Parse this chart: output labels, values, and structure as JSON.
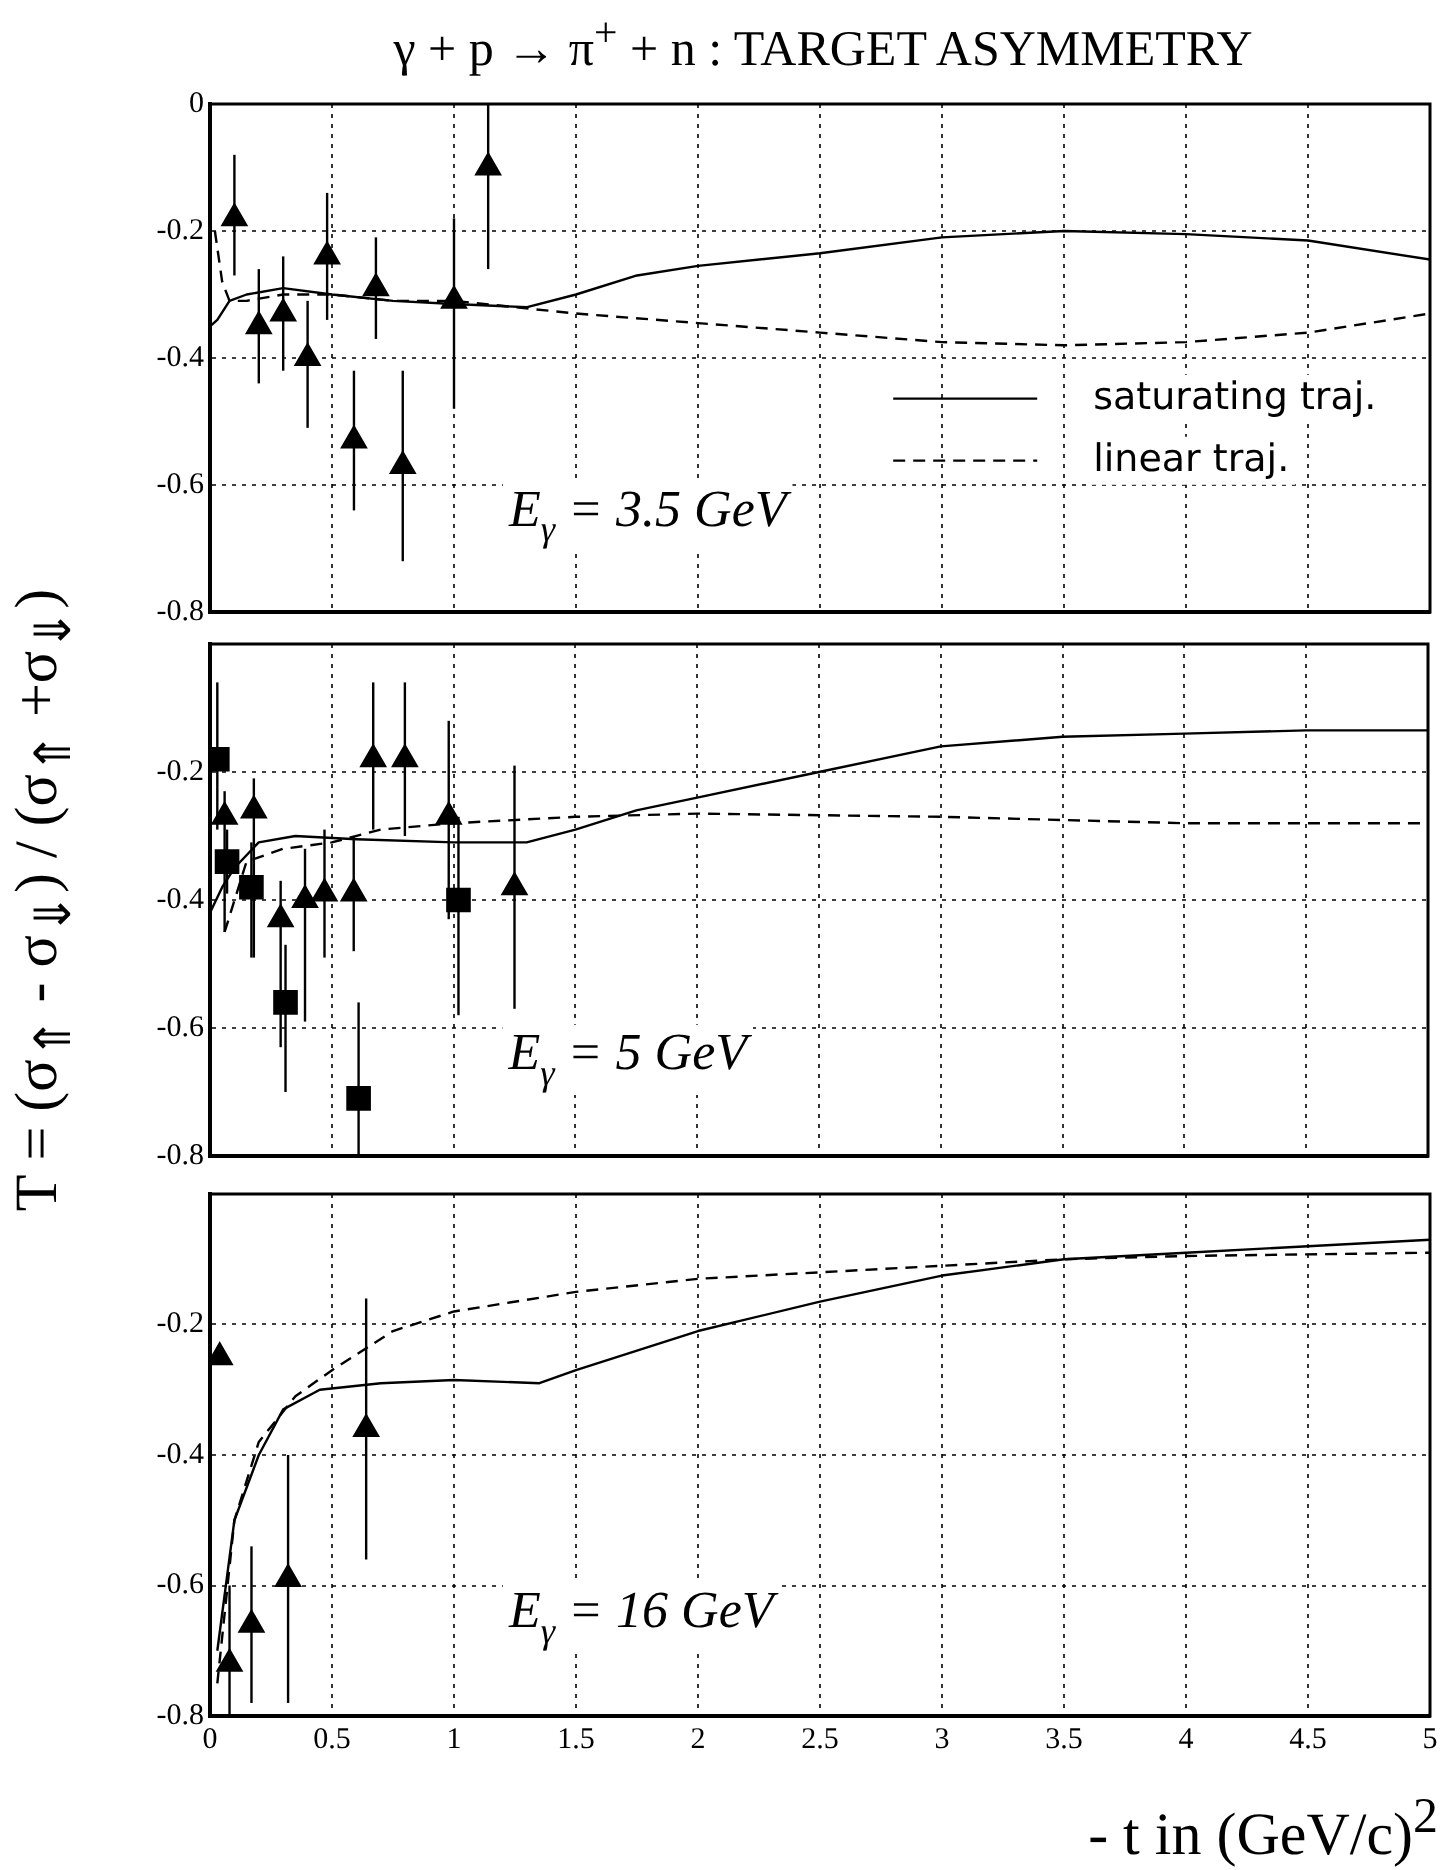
{
  "chart_data": [
    {
      "type": "scatter",
      "title": "γ + p → π$^{+}$ + n : TARGET ASYMMETRY",
      "annotations": [
        "E$_{γ}$ = 3.5 GeV"
      ],
      "xlim": [
        0,
        5
      ],
      "ylim": [
        -0.8,
        0
      ],
      "xticks": [
        0,
        0.5,
        1,
        1.5,
        2,
        2.5,
        3,
        3.5,
        4,
        4.5,
        5
      ],
      "yticks": [
        -0.8,
        -0.6,
        -0.4,
        -0.2,
        0
      ],
      "tick_labels": "y",
      "grid": true,
      "legend": "right",
      "series": [
        {
          "type": "line",
          "name": "saturating traj.",
          "color": "#000000",
          "line_style": "solid",
          "marker": "none",
          "x": [
            0,
            0.03,
            0.08,
            0.15,
            0.3,
            0.5,
            0.75,
            1,
            1.3,
            1.5,
            1.75,
            2,
            2.5,
            3,
            3.5,
            4,
            4.5,
            5
          ],
          "values": [
            -0.35,
            -0.34,
            -0.31,
            -0.3,
            -0.29,
            -0.3,
            -0.31,
            -0.315,
            -0.32,
            -0.3,
            -0.27,
            -0.255,
            -0.235,
            -0.21,
            -0.2,
            -0.205,
            -0.215,
            -0.245
          ]
        },
        {
          "type": "line",
          "name": "linear traj.",
          "color": "#000000",
          "line_style": "dashed",
          "marker": "none",
          "x": [
            0.02,
            0.05,
            0.08,
            0.15,
            0.3,
            0.5,
            0.75,
            1,
            1.5,
            2,
            2.5,
            3,
            3.5,
            4,
            4.5,
            5
          ],
          "values": [
            -0.2,
            -0.28,
            -0.31,
            -0.31,
            -0.3,
            -0.3,
            -0.31,
            -0.31,
            -0.33,
            -0.345,
            -0.36,
            -0.375,
            -0.38,
            -0.375,
            -0.36,
            -0.33
          ]
        },
        {
          "type": "scatter",
          "color": "#000000",
          "marker": "triangle",
          "x": [
            0.1,
            0.2,
            0.3,
            0.4,
            0.48,
            0.59,
            0.68,
            0.79,
            1.0,
            1.14
          ],
          "values": [
            -0.18,
            -0.35,
            -0.33,
            -0.4,
            -0.24,
            -0.53,
            -0.29,
            -0.57,
            -0.31,
            -0.1
          ],
          "errors": [
            [
              -0.27,
              -0.08
            ],
            [
              -0.44,
              -0.26
            ],
            [
              -0.42,
              -0.24
            ],
            [
              -0.51,
              -0.31
            ],
            [
              -0.34,
              -0.14
            ],
            [
              -0.64,
              -0.42
            ],
            [
              -0.37,
              -0.21
            ],
            [
              -0.72,
              -0.42
            ],
            [
              -0.48,
              -0.18
            ],
            [
              -0.26,
              0
            ]
          ]
        }
      ]
    },
    {
      "type": "scatter",
      "ylabel": "T = (σ$_{⇑}$ - σ$_{⇓}$) / (σ$_{⇑}$ +σ$_{⇓}$)",
      "annotations": [
        "E$_{γ}$ = 5 GeV"
      ],
      "xlim": [
        0,
        5
      ],
      "ylim": [
        -0.8,
        0
      ],
      "xticks": [
        0,
        0.5,
        1,
        1.5,
        2,
        2.5,
        3,
        3.5,
        4,
        4.5,
        5
      ],
      "yticks": [
        -0.8,
        -0.6,
        -0.4,
        -0.2,
        {
          "value": 0,
          "label": null
        }
      ],
      "tick_labels": "y",
      "grid": true,
      "series": [
        {
          "type": "line",
          "color": "#000000",
          "line_style": "solid",
          "marker": "none",
          "x": [
            0,
            0.05,
            0.1,
            0.2,
            0.35,
            0.6,
            1,
            1.3,
            1.5,
            1.75,
            2,
            2.5,
            3,
            3.5,
            4,
            4.5,
            5
          ],
          "values": [
            -0.42,
            -0.38,
            -0.35,
            -0.31,
            -0.3,
            -0.305,
            -0.31,
            -0.31,
            -0.29,
            -0.26,
            -0.24,
            -0.2,
            -0.16,
            -0.145,
            -0.14,
            -0.135,
            -0.135
          ]
        },
        {
          "type": "line",
          "color": "#000000",
          "line_style": "dashed",
          "marker": "none",
          "x": [
            0.06,
            0.15,
            0.3,
            0.5,
            0.7,
            1,
            1.5,
            2,
            3,
            4,
            5
          ],
          "values": [
            -0.45,
            -0.34,
            -0.32,
            -0.31,
            -0.29,
            -0.28,
            -0.27,
            -0.265,
            -0.27,
            -0.28,
            -0.28
          ]
        },
        {
          "type": "scatter",
          "color": "#000000",
          "marker": "triangle",
          "x": [
            0.06,
            0.18,
            0.29,
            0.39,
            0.47,
            0.59,
            0.67,
            0.8,
            0.98,
            1.25
          ],
          "values": [
            -0.27,
            -0.26,
            -0.43,
            -0.4,
            -0.39,
            -0.39,
            -0.18,
            -0.18,
            -0.27,
            -0.38
          ],
          "errors": [
            [
              -0.45,
              -0.23
            ],
            [
              -0.49,
              -0.21
            ],
            [
              -0.63,
              -0.37
            ],
            [
              -0.59,
              -0.32
            ],
            [
              -0.49,
              -0.29
            ],
            [
              -0.48,
              -0.3
            ],
            [
              -0.29,
              -0.06
            ],
            [
              -0.3,
              -0.06
            ],
            [
              -0.43,
              -0.12
            ],
            [
              -0.57,
              -0.19
            ]
          ]
        },
        {
          "type": "scatter",
          "color": "#000000",
          "marker": "square",
          "x": [
            0.03,
            0.07,
            0.17,
            0.31,
            0.61,
            1.02
          ],
          "values": [
            -0.18,
            -0.34,
            -0.38,
            -0.56,
            -0.71,
            -0.4
          ],
          "errors": [
            [
              -0.29,
              -0.06
            ],
            [
              -0.39,
              -0.29
            ],
            [
              -0.49,
              -0.31
            ],
            [
              -0.7,
              -0.47
            ],
            [
              -0.8,
              -0.56
            ],
            [
              -0.58,
              -0.27
            ]
          ]
        }
      ]
    },
    {
      "type": "scatter",
      "xlabel": "- t in (GeV/c)$^{2}$",
      "annotations": [
        "E$_{γ}$ = 16 GeV"
      ],
      "xlim": [
        0,
        5
      ],
      "ylim": [
        -0.8,
        0
      ],
      "xticks": [
        0,
        0.5,
        1,
        1.5,
        2,
        2.5,
        3,
        3.5,
        4,
        4.5,
        5
      ],
      "yticks": [
        -0.8,
        -0.6,
        -0.4,
        -0.2,
        {
          "value": 0,
          "label": null
        }
      ],
      "grid": true,
      "series": [
        {
          "type": "line",
          "color": "#000000",
          "line_style": "solid",
          "marker": "none",
          "x": [
            0.03,
            0.1,
            0.2,
            0.3,
            0.45,
            0.7,
            1,
            1.35,
            1.5,
            2,
            2.5,
            3,
            3.5,
            4,
            4.5,
            5
          ],
          "values": [
            -0.7,
            -0.5,
            -0.4,
            -0.33,
            -0.3,
            -0.29,
            -0.285,
            -0.29,
            -0.27,
            -0.21,
            -0.165,
            -0.125,
            -0.1,
            -0.09,
            -0.08,
            -0.07
          ]
        },
        {
          "type": "line",
          "color": "#000000",
          "line_style": "dashed",
          "marker": "none",
          "x": [
            0.03,
            0.1,
            0.2,
            0.35,
            0.5,
            0.75,
            1,
            1.5,
            2,
            2.5,
            3,
            3.5,
            4,
            5
          ],
          "values": [
            -0.75,
            -0.5,
            -0.38,
            -0.31,
            -0.27,
            -0.21,
            -0.18,
            -0.15,
            -0.13,
            -0.12,
            -0.11,
            -0.1,
            -0.095,
            -0.09
          ]
        },
        {
          "type": "scatter",
          "color": "#000000",
          "marker": "triangle",
          "x": [
            0.04,
            0.08,
            0.17,
            0.32,
            0.64
          ],
          "values": [
            -0.25,
            -0.72,
            -0.66,
            -0.59,
            -0.36
          ],
          "errors": [
            null,
            [
              -0.8,
              -0.6
            ],
            [
              -0.78,
              -0.54
            ],
            [
              -0.78,
              -0.4
            ],
            [
              -0.56,
              -0.16
            ]
          ]
        }
      ]
    }
  ]
}
